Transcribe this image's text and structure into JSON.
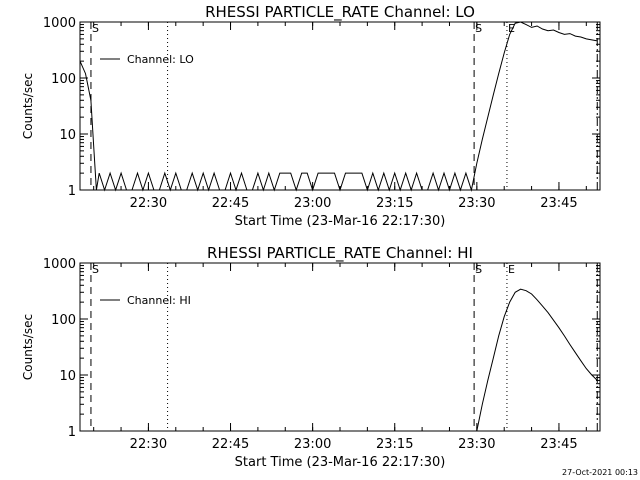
{
  "footer": {
    "timestamp": "27-Oct-2021 00:13"
  },
  "chart_data": [
    {
      "type": "line",
      "title": "RHESSI PARTICLE_RATE Channel: LO",
      "xlabel": "Start Time (23-Mar-16 22:17:30)",
      "ylabel": "Counts/sec",
      "xlim": [
        "22:17:30",
        "23:52:30"
      ],
      "ylim": [
        1,
        1000
      ],
      "yscale": "log",
      "xticks": [
        "22:30",
        "22:45",
        "23:00",
        "23:15",
        "23:30",
        "23:45"
      ],
      "yticks": [
        "1",
        "10",
        "100",
        "1000"
      ],
      "legend": {
        "position": "top-left",
        "entries": [
          "Channel: LO"
        ]
      },
      "markers": [
        {
          "time": "22:19:30",
          "style": "dashed",
          "label": "S"
        },
        {
          "time": "22:33:30",
          "style": "dotted",
          "label": ""
        },
        {
          "time": "23:29:30",
          "style": "dashed",
          "label": "S"
        },
        {
          "time": "23:35:30",
          "style": "dotted",
          "label": "E"
        },
        {
          "time": "23:52:00",
          "style": "dashdot",
          "label": ""
        }
      ],
      "series": [
        {
          "name": "Channel: LO",
          "x": [
            "22:17:30",
            "22:18:30",
            "22:19:30",
            "22:20:00",
            "22:20:30",
            "22:21:00",
            "22:22:00",
            "22:23:00",
            "22:24:00",
            "22:25:00",
            "22:26:00",
            "22:27:00",
            "22:28:00",
            "22:29:00",
            "22:30:00",
            "22:31:00",
            "22:32:00",
            "22:33:00",
            "22:34:00",
            "22:35:00",
            "22:36:00",
            "22:37:00",
            "22:38:00",
            "22:39:00",
            "22:40:00",
            "22:41:00",
            "22:42:00",
            "22:43:00",
            "22:44:00",
            "22:45:00",
            "22:46:00",
            "22:47:00",
            "22:48:00",
            "22:49:00",
            "22:50:00",
            "22:51:00",
            "22:52:00",
            "22:53:00",
            "22:54:00",
            "22:55:00",
            "22:56:00",
            "22:57:00",
            "22:58:00",
            "22:59:00",
            "23:00:00",
            "23:01:00",
            "23:02:00",
            "23:03:00",
            "23:04:00",
            "23:05:00",
            "23:06:00",
            "23:07:00",
            "23:08:00",
            "23:09:00",
            "23:10:00",
            "23:11:00",
            "23:12:00",
            "23:13:00",
            "23:14:00",
            "23:15:00",
            "23:16:00",
            "23:17:00",
            "23:18:00",
            "23:19:00",
            "23:20:00",
            "23:21:00",
            "23:22:00",
            "23:23:00",
            "23:24:00",
            "23:25:00",
            "23:26:00",
            "23:27:00",
            "23:28:00",
            "23:29:00",
            "23:30:00",
            "23:31:00",
            "23:32:00",
            "23:33:00",
            "23:34:00",
            "23:35:00",
            "23:36:00",
            "23:37:00",
            "23:38:00",
            "23:39:00",
            "23:40:00",
            "23:41:00",
            "23:42:00",
            "23:43:00",
            "23:44:00",
            "23:45:00",
            "23:46:00",
            "23:47:00",
            "23:48:00",
            "23:49:00",
            "23:50:00",
            "23:51:00",
            "23:52:00"
          ],
          "y": [
            200,
            120,
            40,
            6,
            1,
            2,
            1,
            2,
            1,
            2,
            1,
            1,
            2,
            1,
            2,
            1,
            1,
            2,
            1,
            2,
            1,
            1,
            2,
            1,
            2,
            1,
            2,
            1,
            1,
            2,
            1,
            2,
            1,
            1,
            2,
            1,
            2,
            1,
            2,
            2,
            2,
            1,
            2,
            2,
            1,
            2,
            2,
            2,
            2,
            1,
            2,
            2,
            2,
            2,
            1,
            2,
            1,
            2,
            1,
            2,
            1,
            2,
            1,
            2,
            1,
            1,
            2,
            1,
            2,
            1,
            2,
            1,
            2,
            1,
            3,
            8,
            20,
            50,
            120,
            280,
            600,
            950,
            1000,
            900,
            800,
            850,
            750,
            700,
            720,
            650,
            600,
            620,
            560,
            540,
            500,
            480,
            460
          ]
        }
      ]
    },
    {
      "type": "line",
      "title": "RHESSI PARTICLE_RATE Channel: HI",
      "xlabel": "Start Time (23-Mar-16 22:17:30)",
      "ylabel": "Counts/sec",
      "xlim": [
        "22:17:30",
        "23:52:30"
      ],
      "ylim": [
        1,
        1000
      ],
      "yscale": "log",
      "xticks": [
        "22:30",
        "22:45",
        "23:00",
        "23:15",
        "23:30",
        "23:45"
      ],
      "yticks": [
        "1",
        "10",
        "100",
        "1000"
      ],
      "legend": {
        "position": "top-left",
        "entries": [
          "Channel: HI"
        ]
      },
      "markers": [
        {
          "time": "22:19:30",
          "style": "dashed",
          "label": "S"
        },
        {
          "time": "22:33:30",
          "style": "dotted",
          "label": ""
        },
        {
          "time": "23:29:30",
          "style": "dashed",
          "label": "S"
        },
        {
          "time": "23:35:30",
          "style": "dotted",
          "label": "E"
        },
        {
          "time": "23:52:00",
          "style": "dashdot",
          "label": ""
        }
      ],
      "series": [
        {
          "name": "Channel: HI",
          "x": [
            "23:30:00",
            "23:31:00",
            "23:32:00",
            "23:33:00",
            "23:34:00",
            "23:35:00",
            "23:36:00",
            "23:37:00",
            "23:38:00",
            "23:39:00",
            "23:40:00",
            "23:41:00",
            "23:42:00",
            "23:43:00",
            "23:44:00",
            "23:45:00",
            "23:46:00",
            "23:47:00",
            "23:48:00",
            "23:49:00",
            "23:50:00",
            "23:51:00",
            "23:52:00"
          ],
          "y": [
            1,
            3,
            8,
            20,
            50,
            110,
            200,
            300,
            340,
            320,
            280,
            220,
            170,
            130,
            95,
            70,
            50,
            35,
            25,
            18,
            13,
            10,
            8
          ]
        }
      ]
    }
  ]
}
